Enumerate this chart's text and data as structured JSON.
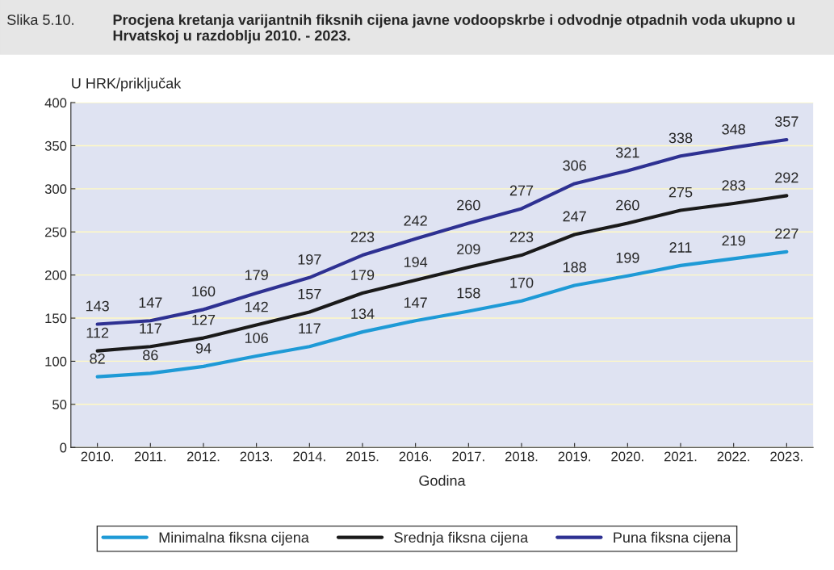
{
  "chart_data": {
    "type": "line",
    "title": "Procjena kretanja varijantnih fiksnih cijena javne vodoopskrbe i odvodnje otpadnih voda ukupno u Hrvatskoj u razdoblju 2010. - 2023.",
    "annotations": [
      "Slika 5.10."
    ],
    "ylabel": "U HRK/priključak",
    "xlabel": "Godina",
    "categories": [
      "2010.",
      "2011.",
      "2012.",
      "2013.",
      "2014.",
      "2015.",
      "2016.",
      "2017.",
      "2018.",
      "2019.",
      "2020.",
      "2021.",
      "2022.",
      "2023."
    ],
    "series": [
      {
        "name": "Minimalna fiksna cijena",
        "color": "#1e9ad6",
        "values": [
          82,
          86,
          94,
          106,
          117,
          134,
          147,
          158,
          170,
          188,
          199,
          211,
          219,
          227
        ]
      },
      {
        "name": "Srednja fiksna cijena",
        "color": "#1a1a1a",
        "values": [
          112,
          117,
          127,
          142,
          157,
          179,
          194,
          209,
          223,
          247,
          260,
          275,
          283,
          292
        ]
      },
      {
        "name": "Puna fiksna cijena",
        "color": "#2e3192",
        "values": [
          143,
          147,
          160,
          179,
          197,
          223,
          242,
          260,
          277,
          306,
          321,
          338,
          348,
          357
        ]
      }
    ],
    "ylim": [
      0,
      400
    ],
    "yticks": [
      0,
      50,
      100,
      150,
      200,
      250,
      300,
      350,
      400
    ],
    "grid": "y",
    "legend": "bottom",
    "data_labels": true,
    "marker": "none",
    "line_style": "solid"
  }
}
